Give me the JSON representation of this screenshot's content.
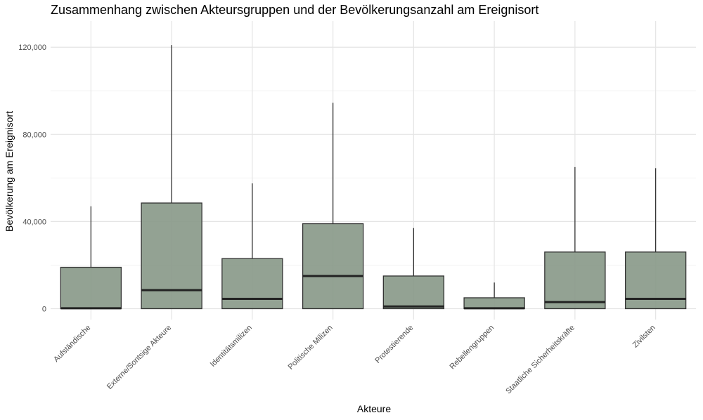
{
  "chart_data": {
    "type": "boxplot",
    "title": "Zusammenhang zwischen Akteursgruppen und der Bevölkerungsanzahl am Ereignisort",
    "xlabel": "Akteure",
    "ylabel": "Bevölkerung am Ereignisort",
    "ylim": [
      -5000,
      132000
    ],
    "y_ticks": [
      0,
      40000,
      80000,
      120000
    ],
    "y_tick_labels": [
      "0",
      "40,000",
      "80,000",
      "120,000"
    ],
    "grid": true,
    "box_color": "#8a9a8a",
    "categories": [
      "Aufständische",
      "Externe/Sontsige Akteure",
      "Identitätsmilizen",
      "Politische Milizen",
      "Protestierende",
      "Rebellengruppen",
      "Staatliche Sicherheitskräfte",
      "Zivilsten"
    ],
    "boxes": [
      {
        "min": 0,
        "q1": 0,
        "median": 200,
        "q3": 19000,
        "max": 47000
      },
      {
        "min": 0,
        "q1": 0,
        "median": 8500,
        "q3": 48500,
        "max": 121000
      },
      {
        "min": 0,
        "q1": 0,
        "median": 4500,
        "q3": 23000,
        "max": 57500
      },
      {
        "min": 0,
        "q1": 0,
        "median": 15000,
        "q3": 39000,
        "max": 94500
      },
      {
        "min": 0,
        "q1": 0,
        "median": 1000,
        "q3": 15000,
        "max": 37000
      },
      {
        "min": 0,
        "q1": 0,
        "median": 200,
        "q3": 5000,
        "max": 12000
      },
      {
        "min": 0,
        "q1": 0,
        "median": 3000,
        "q3": 26000,
        "max": 65000
      },
      {
        "min": 0,
        "q1": 0,
        "median": 4500,
        "q3": 26000,
        "max": 64500
      }
    ]
  }
}
